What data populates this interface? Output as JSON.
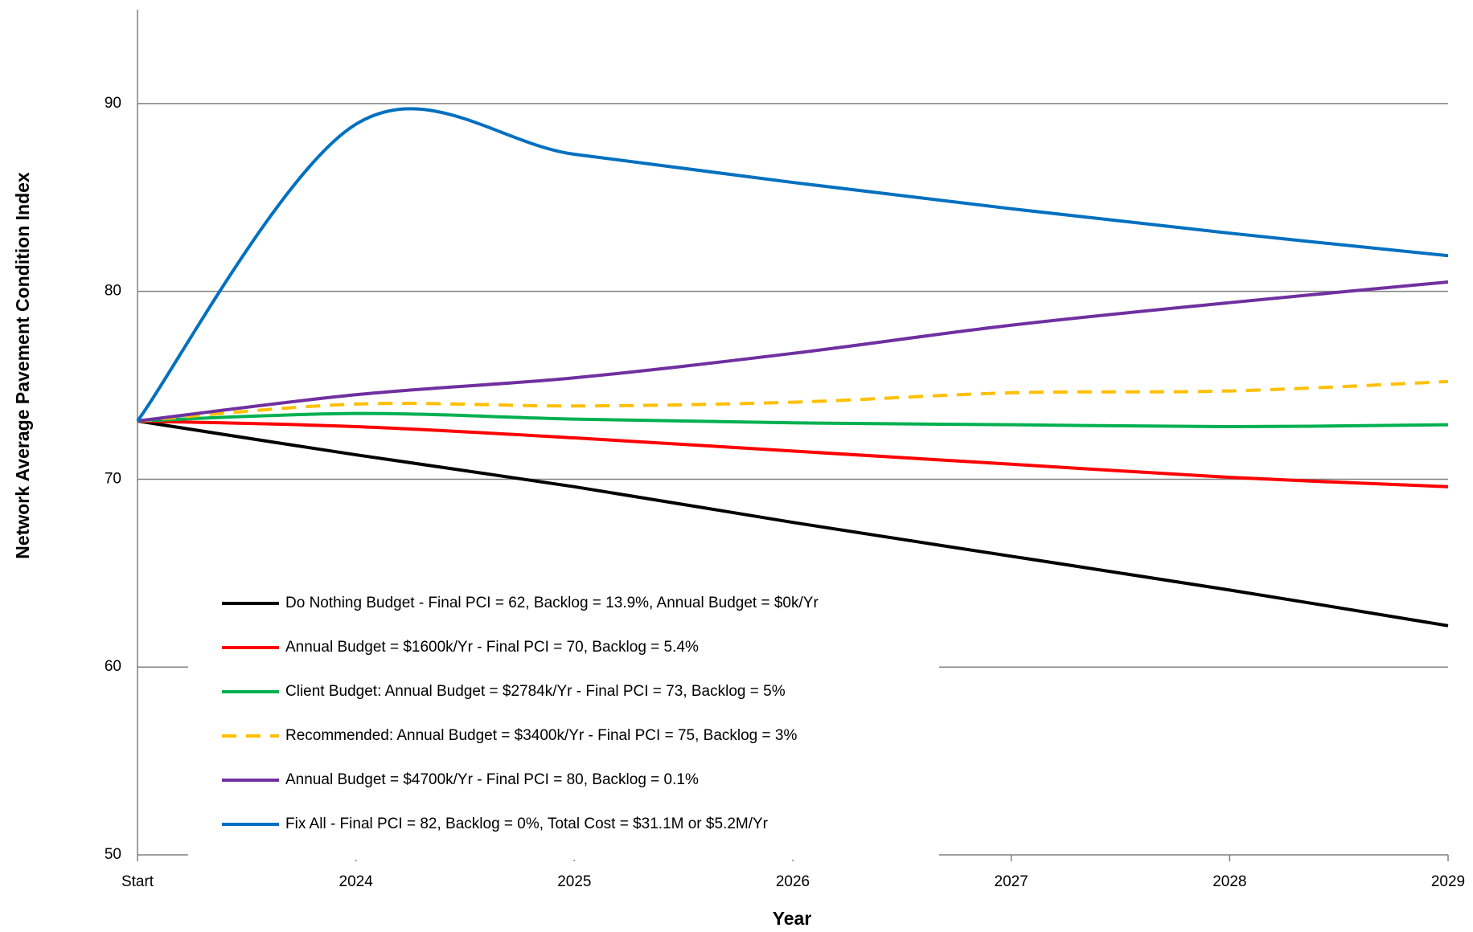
{
  "chart_data": {
    "type": "line",
    "xlabel": "Year",
    "ylabel": "Network Average Pavement Condition Index",
    "categories": [
      "Start",
      "2024",
      "2025",
      "2026",
      "2027",
      "2028",
      "2029"
    ],
    "ylim": [
      50,
      95
    ],
    "yticks": [
      50,
      60,
      70,
      80,
      90
    ],
    "grid": true,
    "legend": "lower left",
    "series": [
      {
        "name": "Do Nothing Budget - Final PCI = 62, Backlog = 13.9%, Annual Budget = $0k/Yr",
        "color": "#000000",
        "values": [
          73.1,
          71.3,
          69.6,
          67.7,
          65.9,
          64.1,
          62.2
        ]
      },
      {
        "name": "Annual Budget = $1600k/Yr - Final PCI = 70, Backlog = 5.4%",
        "color": "#ff0000",
        "values": [
          73.1,
          72.8,
          72.2,
          71.5,
          70.8,
          70.1,
          69.6
        ]
      },
      {
        "name": "Client Budget: Annual Budget = $2784k/Yr - Final PCI = 73, Backlog = 5%",
        "color": "#00b050",
        "values": [
          73.1,
          73.5,
          73.2,
          73.0,
          72.9,
          72.8,
          72.9
        ]
      },
      {
        "name": "Recommended: Annual Budget = $3400k/Yr - Final PCI = 75, Backlog = 3%",
        "color": "#ffc000",
        "dashed": true,
        "values": [
          73.1,
          74.0,
          73.9,
          74.1,
          74.6,
          74.7,
          75.2
        ]
      },
      {
        "name": "Annual Budget = $4700k/Yr - Final PCI = 80, Backlog = 0.1%",
        "color": "#7030a0",
        "values": [
          73.1,
          74.5,
          75.4,
          76.7,
          78.2,
          79.4,
          80.5
        ]
      },
      {
        "name": "Fix All - Final PCI = 82, Backlog = 0%, Total Cost  = $31.1M or $5.2M/Yr",
        "color": "#0070c0",
        "values": [
          73.1,
          88.9,
          87.3,
          85.8,
          84.4,
          83.1,
          81.9
        ]
      }
    ]
  }
}
